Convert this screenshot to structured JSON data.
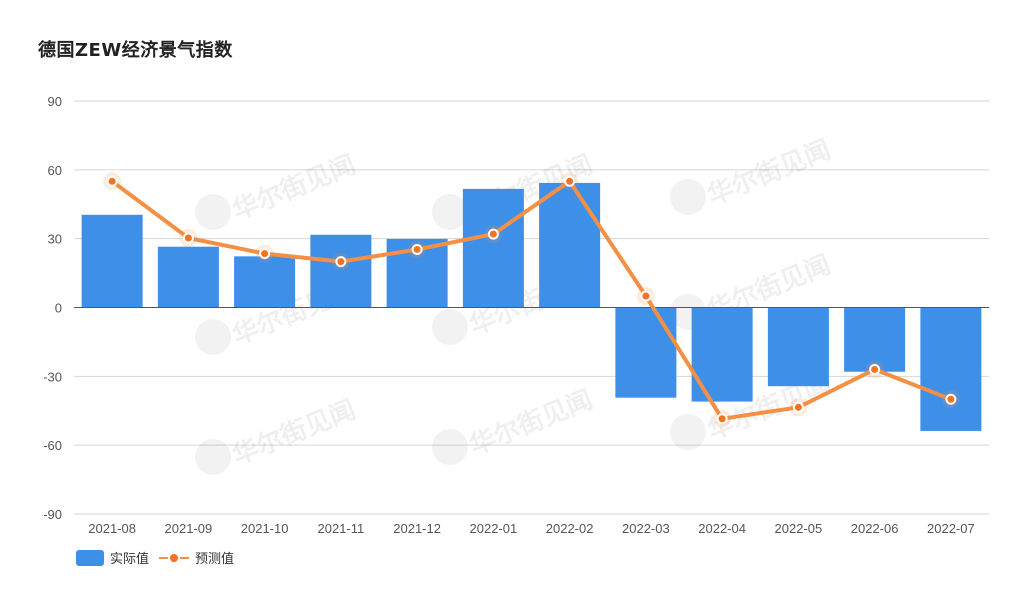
{
  "chart_data": {
    "type": "bar+line",
    "title": "德国ZEW经济景气指数",
    "categories": [
      "2021-08",
      "2021-09",
      "2021-10",
      "2021-11",
      "2021-12",
      "2022-01",
      "2022-02",
      "2022-03",
      "2022-04",
      "2022-05",
      "2022-06",
      "2022-07"
    ],
    "series": [
      {
        "name": "实际值",
        "type": "bar",
        "values": [
          40.4,
          26.5,
          22.3,
          31.7,
          29.9,
          51.7,
          54.3,
          -39.3,
          -41.0,
          -34.3,
          -28.0,
          -53.8
        ]
      },
      {
        "name": "预测值",
        "type": "line",
        "values": [
          55.0,
          30.3,
          23.5,
          20.0,
          25.3,
          32.0,
          55.0,
          5.0,
          -48.5,
          -43.5,
          -27.0,
          -40.0
        ]
      }
    ],
    "ylim": [
      -90,
      90
    ],
    "yticks": [
      90,
      60,
      30,
      0,
      -30,
      -60,
      -90
    ],
    "grid": true,
    "legend_position": "bottom-left",
    "colors": {
      "bar": "#3d8fe8",
      "line": "#f58f44",
      "line_dot": "#f27321"
    },
    "watermark": "华尔街见闻"
  }
}
